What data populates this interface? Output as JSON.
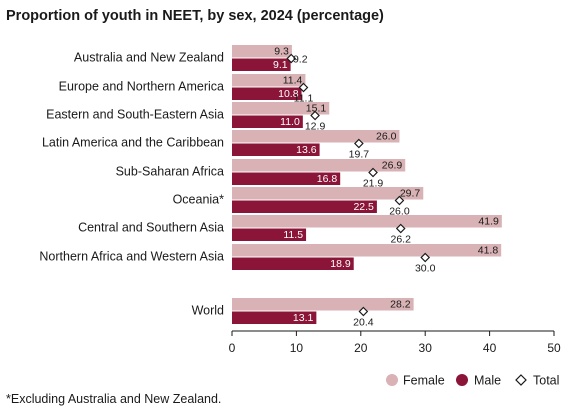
{
  "title": "Proportion of youth in NEET, by sex, 2024 (percentage)",
  "footnote": "*Excluding Australia and New Zealand.",
  "colors": {
    "female": "#d8b2b4",
    "male": "#8b1538",
    "total_marker": "#1a1a1a"
  },
  "chart_data": {
    "type": "bar",
    "orientation": "horizontal",
    "title": "Proportion of youth in NEET, by sex, 2024 (percentage)",
    "categories": [
      "Australia and New Zealand",
      "Europe and Northern America",
      "Eastern and South-Eastern Asia",
      "Latin America and the Caribbean",
      "Sub-Saharan Africa",
      "Oceania*",
      "Central and Southern Asia",
      "Northern Africa and Western Asia",
      "World"
    ],
    "series": [
      {
        "name": "Female",
        "values": [
          9.3,
          11.4,
          15.1,
          26.0,
          26.9,
          29.7,
          41.9,
          41.8,
          28.2
        ]
      },
      {
        "name": "Male",
        "values": [
          9.1,
          10.8,
          11.0,
          13.6,
          16.8,
          22.5,
          11.5,
          18.9,
          13.1
        ]
      },
      {
        "name": "Total",
        "values": [
          9.2,
          11.1,
          12.9,
          19.7,
          21.9,
          26.0,
          26.2,
          30.0,
          20.4
        ]
      }
    ],
    "xlim": [
      0,
      50
    ],
    "xticks": [
      0,
      10,
      20,
      30,
      40,
      50
    ],
    "legend": [
      "Female",
      "Male",
      "Total"
    ],
    "legend_position": "bottom-right",
    "grid": false
  }
}
